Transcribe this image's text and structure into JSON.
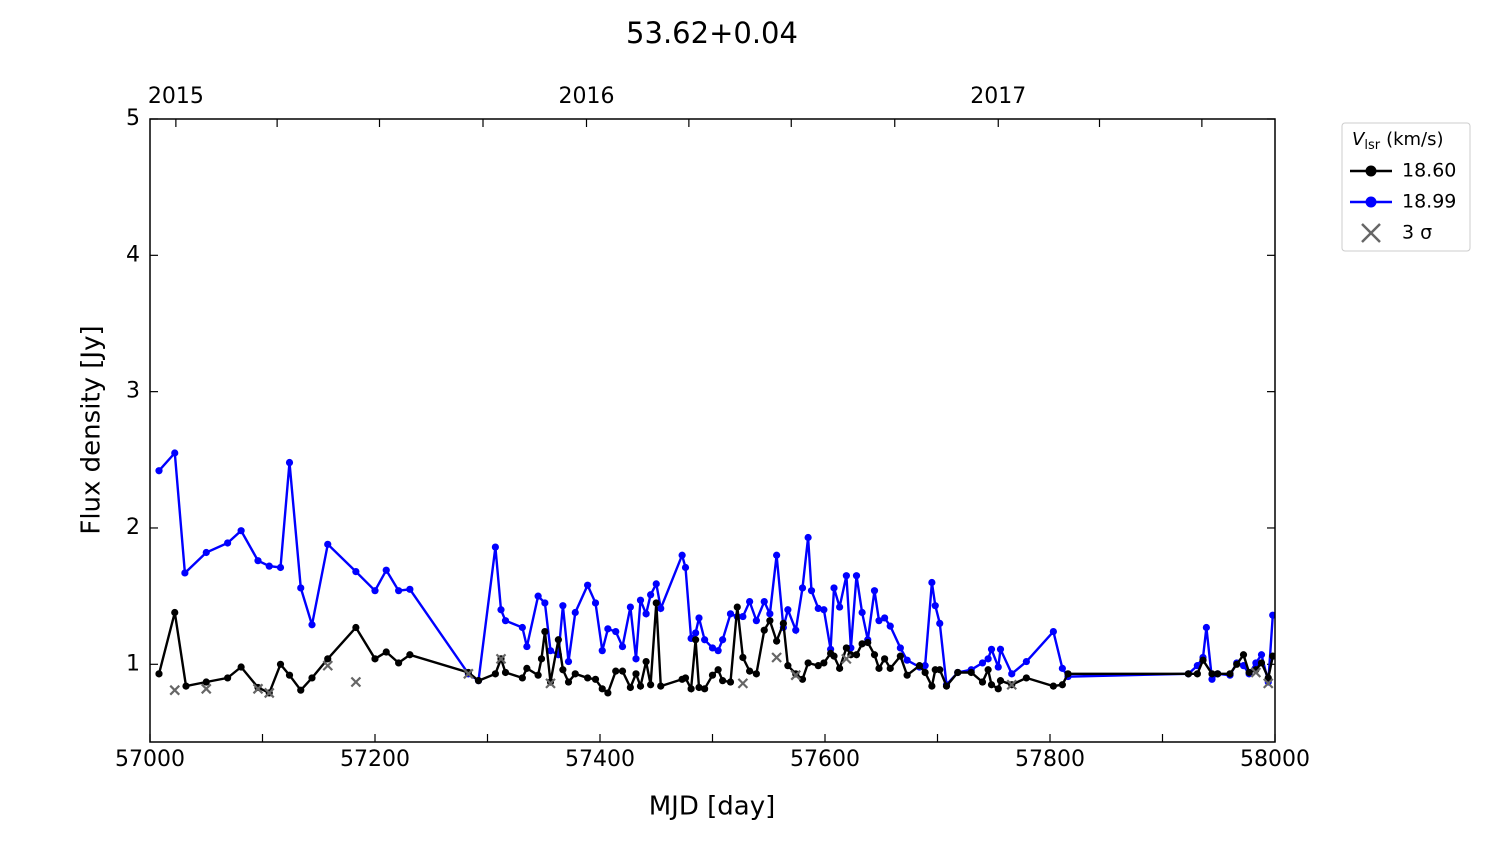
{
  "chart_data": {
    "type": "line",
    "title": "53.62+0.04",
    "xlabel": "MJD [day]",
    "ylabel": "Flux density [Jy]",
    "xlim": [
      57000,
      58000
    ],
    "xticks": [
      57000,
      57200,
      57400,
      57600,
      57800,
      58000
    ],
    "xminor": [
      57100,
      57300,
      57500,
      57700,
      57900
    ],
    "ylim": [
      0.43,
      5
    ],
    "yticks": [
      1,
      2,
      3,
      4,
      5
    ],
    "x2ticks": [
      {
        "value": 57023,
        "label": "2015"
      },
      {
        "value": 57388,
        "label": "2016"
      },
      {
        "value": 57754,
        "label": "2017"
      }
    ],
    "x2minor": [
      57113,
      57204,
      57296,
      57479,
      57570,
      57662,
      57844,
      57935
    ],
    "legend_title": {
      "symbol": "V",
      "subscript": "lsr",
      "unit": "(km/s)"
    },
    "legend": "outside upper right",
    "series": [
      {
        "name": "18.60",
        "color": "#000000",
        "marker": "o",
        "x": [
          57008,
          57022,
          57032,
          57050,
          57069,
          57081,
          57096,
          57106,
          57116,
          57124,
          57134,
          57144,
          57158,
          57183,
          57200,
          57210,
          57221,
          57231,
          57283,
          57292,
          57307,
          57312,
          57316,
          57331,
          57335,
          57345,
          57348,
          57351,
          57356,
          57363,
          57367,
          57372,
          57378,
          57389,
          57396,
          57402,
          57407,
          57414,
          57420,
          57427,
          57432,
          57436,
          57441,
          57445,
          57450,
          57454,
          57473,
          57476,
          57481,
          57485,
          57488,
          57493,
          57500,
          57505,
          57509,
          57516,
          57522,
          57527,
          57533,
          57539,
          57546,
          57551,
          57557,
          57563,
          57567,
          57574,
          57580,
          57585,
          57594,
          57599,
          57605,
          57608,
          57613,
          57619,
          57623,
          57628,
          57633,
          57638,
          57644,
          57648,
          57653,
          57658,
          57667,
          57673,
          57684,
          57689,
          57695,
          57698,
          57702,
          57708,
          57718,
          57730,
          57740,
          57745,
          57748,
          57754,
          57756,
          57766,
          57779,
          57803,
          57811,
          57816,
          57923,
          57931,
          57936,
          57944,
          57949,
          57960,
          57966,
          57972,
          57977,
          57983,
          57988,
          57994,
          57998
        ],
        "values": [
          0.93,
          1.38,
          0.84,
          0.87,
          0.9,
          0.98,
          0.83,
          0.79,
          1.0,
          0.92,
          0.81,
          0.9,
          1.04,
          1.27,
          1.04,
          1.09,
          1.01,
          1.07,
          0.94,
          0.88,
          0.93,
          1.04,
          0.94,
          0.9,
          0.97,
          0.92,
          1.04,
          1.24,
          0.87,
          1.18,
          0.96,
          0.87,
          0.93,
          0.9,
          0.89,
          0.82,
          0.79,
          0.95,
          0.95,
          0.83,
          0.93,
          0.84,
          1.02,
          0.85,
          1.45,
          0.84,
          0.89,
          0.9,
          0.82,
          1.18,
          0.83,
          0.82,
          0.92,
          0.96,
          0.88,
          0.87,
          1.42,
          1.05,
          0.95,
          0.93,
          1.25,
          1.32,
          1.17,
          1.3,
          0.99,
          0.93,
          0.89,
          1.01,
          0.99,
          1.01,
          1.08,
          1.06,
          0.97,
          1.12,
          1.07,
          1.07,
          1.15,
          1.16,
          1.07,
          0.97,
          1.04,
          0.97,
          1.06,
          0.92,
          0.99,
          0.94,
          0.84,
          0.96,
          0.96,
          0.84,
          0.94,
          0.94,
          0.87,
          0.96,
          0.85,
          0.82,
          0.88,
          0.85,
          0.9,
          0.84,
          0.85,
          0.93,
          0.93,
          0.93,
          1.03,
          0.93,
          0.93,
          0.93,
          1.0,
          1.07,
          0.94,
          0.96,
          1.01,
          0.9,
          1.06
        ]
      },
      {
        "name": "18.99",
        "color": "#0000ff",
        "marker": "o",
        "x": [
          57008,
          57022,
          57031,
          57050,
          57069,
          57081,
          57096,
          57106,
          57116,
          57124,
          57134,
          57144,
          57158,
          57183,
          57200,
          57210,
          57221,
          57231,
          57283,
          57292,
          57307,
          57312,
          57316,
          57331,
          57335,
          57345,
          57351,
          57356,
          57363,
          57367,
          57372,
          57378,
          57389,
          57396,
          57402,
          57407,
          57414,
          57420,
          57427,
          57432,
          57436,
          57441,
          57445,
          57450,
          57454,
          57473,
          57476,
          57481,
          57485,
          57488,
          57493,
          57500,
          57505,
          57509,
          57516,
          57522,
          57527,
          57533,
          57539,
          57546,
          57551,
          57557,
          57563,
          57567,
          57574,
          57580,
          57585,
          57588,
          57594,
          57599,
          57605,
          57608,
          57613,
          57619,
          57623,
          57628,
          57633,
          57638,
          57644,
          57648,
          57653,
          57658,
          57667,
          57673,
          57684,
          57689,
          57695,
          57698,
          57702,
          57708,
          57718,
          57730,
          57740,
          57745,
          57748,
          57754,
          57756,
          57766,
          57779,
          57803,
          57811,
          57816,
          57923,
          57931,
          57936,
          57939,
          57944,
          57949,
          57960,
          57966,
          57972,
          57977,
          57983,
          57988,
          57994,
          57998
        ],
        "values": [
          2.42,
          2.55,
          1.67,
          1.82,
          1.89,
          1.98,
          1.76,
          1.72,
          1.71,
          2.48,
          1.56,
          1.29,
          1.88,
          1.68,
          1.54,
          1.69,
          1.54,
          1.55,
          0.93,
          0.88,
          1.86,
          1.4,
          1.32,
          1.27,
          1.13,
          1.5,
          1.45,
          1.1,
          1.07,
          1.43,
          1.02,
          1.38,
          1.58,
          1.45,
          1.1,
          1.26,
          1.24,
          1.13,
          1.42,
          1.04,
          1.47,
          1.37,
          1.51,
          1.59,
          1.41,
          1.8,
          1.71,
          1.19,
          1.23,
          1.34,
          1.18,
          1.12,
          1.1,
          1.18,
          1.37,
          1.35,
          1.35,
          1.46,
          1.32,
          1.46,
          1.37,
          1.8,
          1.27,
          1.4,
          1.25,
          1.56,
          1.93,
          1.54,
          1.41,
          1.4,
          1.11,
          1.56,
          1.42,
          1.65,
          1.12,
          1.65,
          1.38,
          1.18,
          1.54,
          1.32,
          1.34,
          1.28,
          1.12,
          1.03,
          0.98,
          0.99,
          1.6,
          1.43,
          1.3,
          0.85,
          0.94,
          0.96,
          1.01,
          1.04,
          1.11,
          0.98,
          1.11,
          0.93,
          1.02,
          1.24,
          0.97,
          0.91,
          0.93,
          0.99,
          1.05,
          1.27,
          0.89,
          0.93,
          0.92,
          1.01,
          0.99,
          0.93,
          1.01,
          1.07,
          0.87,
          1.36
        ]
      },
      {
        "name": "3 σ",
        "color": "#666666",
        "marker": "x",
        "x": [
          57022,
          57050,
          57096,
          57106,
          57158,
          57183,
          57283,
          57312,
          57356,
          57527,
          57557,
          57574,
          57619,
          57766,
          57983,
          57994
        ],
        "values": [
          0.81,
          0.82,
          0.82,
          0.79,
          0.99,
          0.87,
          0.93,
          1.04,
          0.86,
          0.86,
          1.05,
          0.92,
          1.04,
          0.85,
          0.94,
          0.86
        ]
      }
    ]
  }
}
